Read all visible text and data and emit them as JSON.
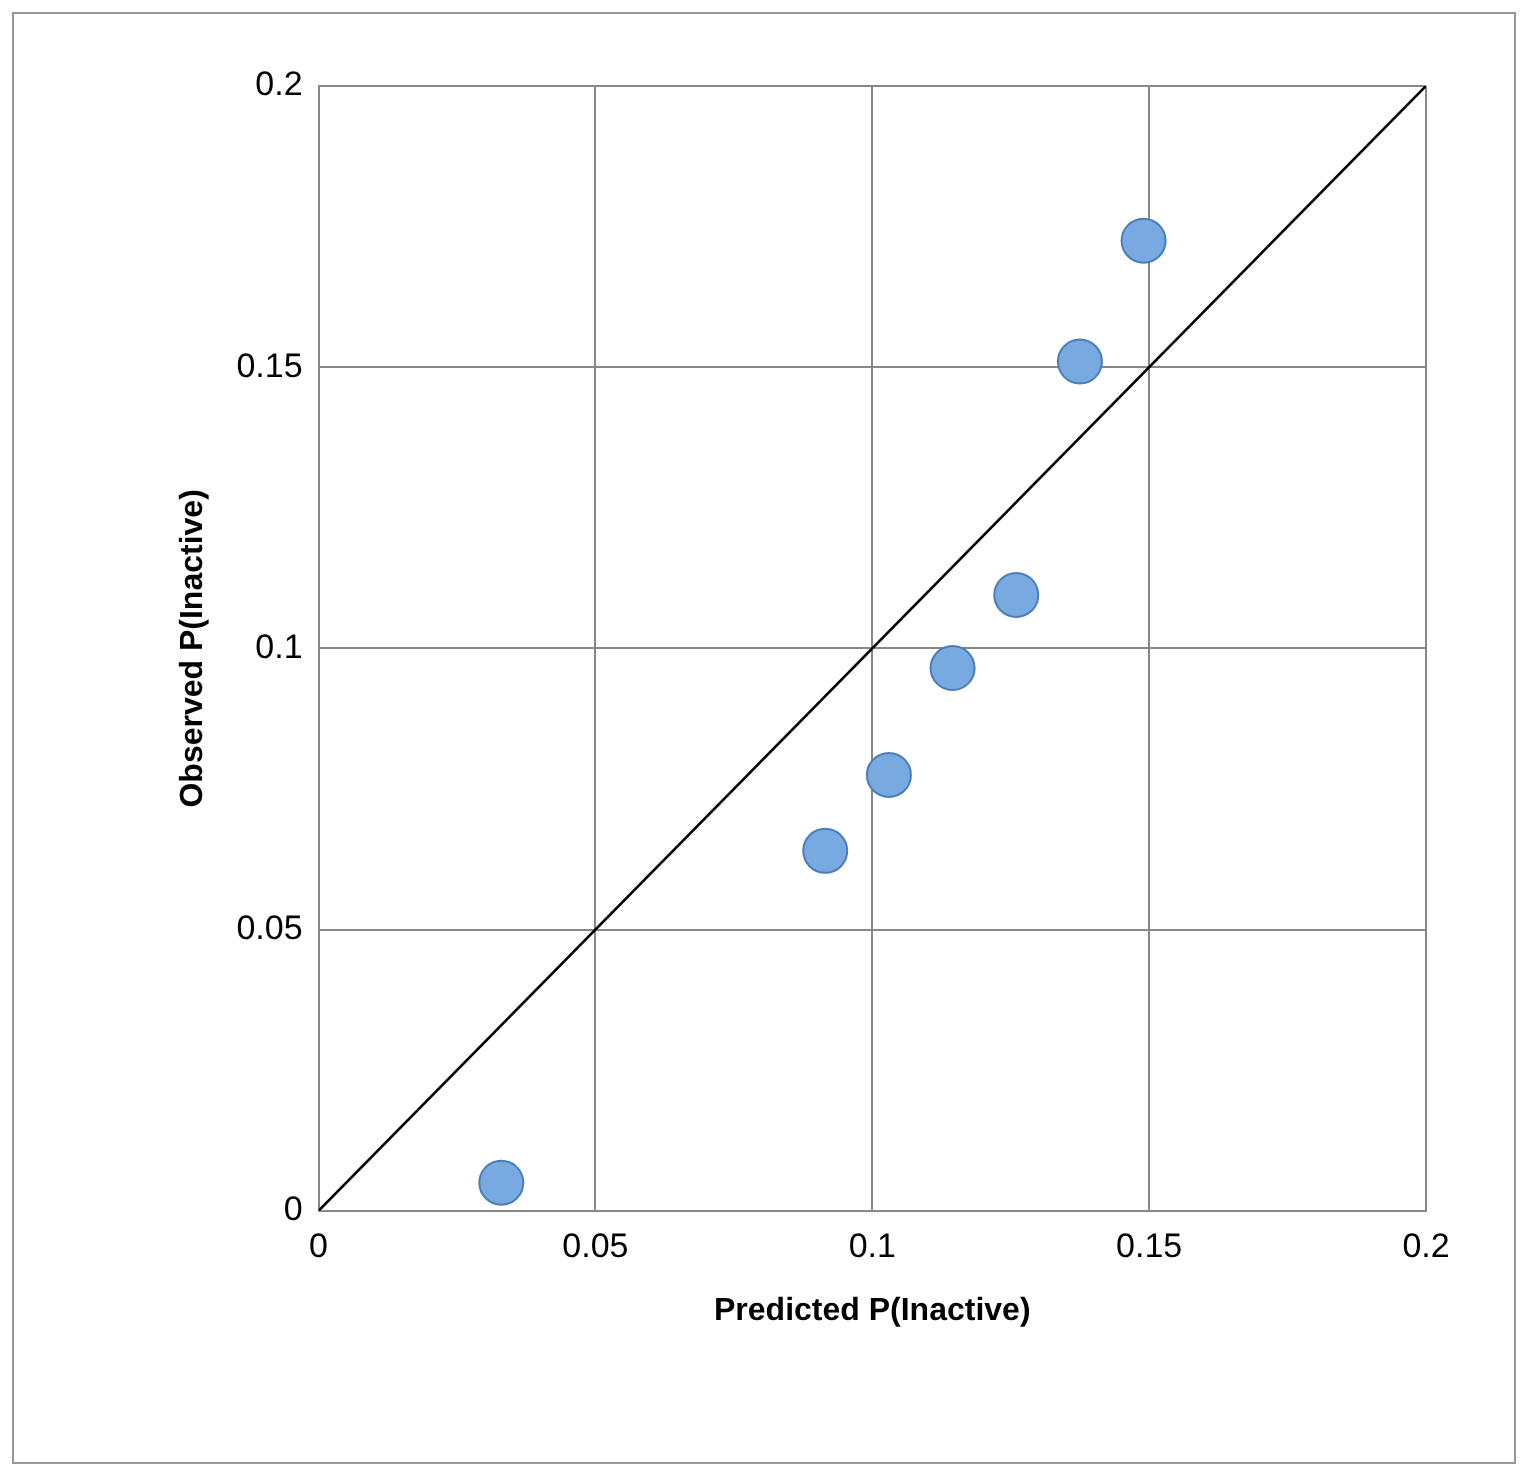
{
  "chart_data": {
    "type": "scatter",
    "xlabel": "Predicted P(Inactive)",
    "ylabel": "Observed P(Inactive)",
    "xlim": [
      0,
      0.2
    ],
    "ylim": [
      0,
      0.2
    ],
    "xticks": [
      0,
      0.05,
      0.1,
      0.15,
      0.2
    ],
    "yticks": [
      0,
      0.05,
      0.1,
      0.15,
      0.2
    ],
    "grid": true,
    "legend": false,
    "series": [
      {
        "marker": "circle",
        "color": "#78a9e0",
        "x": [
          0.033,
          0.0915,
          0.103,
          0.1145,
          0.126,
          0.1375,
          0.149
        ],
        "values": [
          0.005,
          0.064,
          0.0775,
          0.0965,
          0.1095,
          0.151,
          0.1725
        ]
      },
      {
        "type": "line",
        "marker": "none",
        "color": "#000000",
        "x": [
          0,
          0.2
        ],
        "values": [
          0,
          0.2
        ]
      }
    ]
  }
}
